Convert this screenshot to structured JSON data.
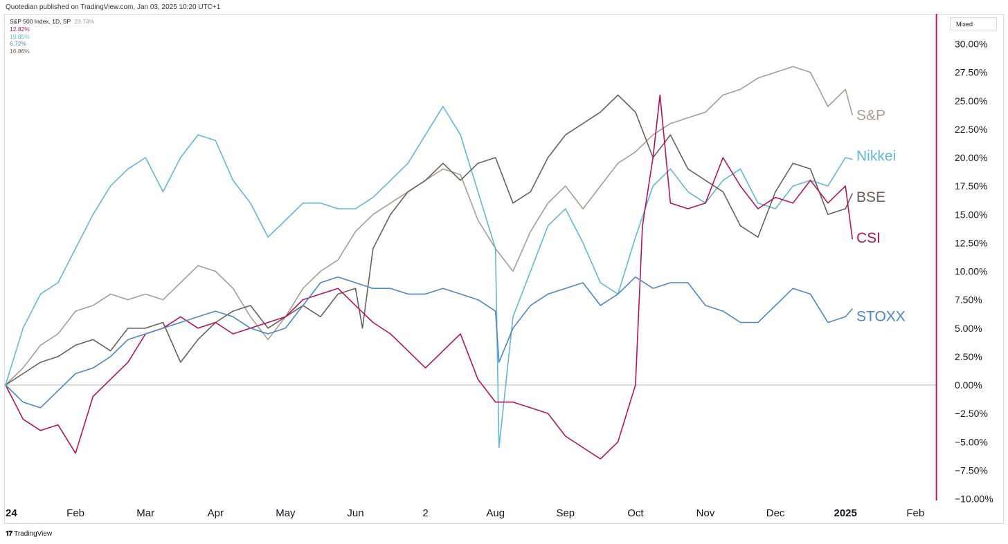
{
  "header": {
    "publisher": "Quotedian published on TradingView.com, Jan 03, 2025 10:20 UTC+1"
  },
  "legend": {
    "symbol": "S&P 500 Index, 1D, SP",
    "symbol_value": "23.74%",
    "values": [
      "12.82%",
      "19.85%",
      "6.72%",
      "16.86%"
    ],
    "value_colors": [
      "#b5125a",
      "#62b6d9",
      "#4a86c5",
      "#6b5e55"
    ]
  },
  "price_scale_mode": "Mixed",
  "watermark": "TradingView",
  "chart_data": {
    "type": "line",
    "title": "",
    "xlabel": "",
    "ylabel": "",
    "ylim": [
      -10,
      31
    ],
    "y_ticks": [
      30,
      27.5,
      25,
      22.5,
      20,
      17.5,
      15,
      12.5,
      10,
      7.5,
      5,
      2.5,
      0,
      -2.5,
      -5,
      -7.5,
      -10
    ],
    "y_tick_labels": [
      "30.00%",
      "27.50%",
      "25.00%",
      "22.50%",
      "20.00%",
      "17.50%",
      "15.00%",
      "12.50%",
      "10.00%",
      "7.50%",
      "5.00%",
      "2.50%",
      "0.00%",
      "−2.50%",
      "−5.00%",
      "−7.50%",
      "−10.00%"
    ],
    "zero_line": 0,
    "x_range": [
      0,
      13.3
    ],
    "x_ticks": [
      {
        "x": 0,
        "label": "24"
      },
      {
        "x": 1,
        "label": "Feb"
      },
      {
        "x": 2,
        "label": "Mar"
      },
      {
        "x": 3,
        "label": "Apr"
      },
      {
        "x": 4,
        "label": "May"
      },
      {
        "x": 5,
        "label": "Jun"
      },
      {
        "x": 6,
        "label": "2"
      },
      {
        "x": 7,
        "label": "Aug"
      },
      {
        "x": 8,
        "label": "Sep"
      },
      {
        "x": 9,
        "label": "Oct"
      },
      {
        "x": 10,
        "label": "Nov"
      },
      {
        "x": 11,
        "label": "Dec"
      },
      {
        "x": 12,
        "label": "2025"
      },
      {
        "x": 13,
        "label": "Feb"
      }
    ],
    "x_unit": "months since start of 2024",
    "marker_x": 13.3,
    "marker_color": "#c2185b",
    "grid": false,
    "series": [
      {
        "name": "S&P",
        "color": "#a89c8f",
        "last_value": 23.74,
        "points": [
          [
            0,
            0
          ],
          [
            0.25,
            1.5
          ],
          [
            0.5,
            3.5
          ],
          [
            0.75,
            4.5
          ],
          [
            1,
            6.5
          ],
          [
            1.25,
            7
          ],
          [
            1.5,
            8
          ],
          [
            1.75,
            7.5
          ],
          [
            2,
            8
          ],
          [
            2.25,
            7.5
          ],
          [
            2.5,
            9
          ],
          [
            2.75,
            10.5
          ],
          [
            3,
            10
          ],
          [
            3.25,
            8.5
          ],
          [
            3.5,
            6
          ],
          [
            3.75,
            4
          ],
          [
            4,
            6
          ],
          [
            4.25,
            8.5
          ],
          [
            4.5,
            10
          ],
          [
            4.75,
            11
          ],
          [
            5,
            13.5
          ],
          [
            5.25,
            15
          ],
          [
            5.5,
            16
          ],
          [
            5.75,
            17
          ],
          [
            6,
            18
          ],
          [
            6.25,
            19
          ],
          [
            6.5,
            18.5
          ],
          [
            6.75,
            14.5
          ],
          [
            7,
            12
          ],
          [
            7.25,
            10
          ],
          [
            7.5,
            13.5
          ],
          [
            7.75,
            16
          ],
          [
            8,
            17.5
          ],
          [
            8.25,
            15.5
          ],
          [
            8.5,
            17.5
          ],
          [
            8.75,
            19.5
          ],
          [
            9,
            20.5
          ],
          [
            9.25,
            22
          ],
          [
            9.5,
            23
          ],
          [
            9.75,
            23.5
          ],
          [
            10,
            24
          ],
          [
            10.25,
            25.5
          ],
          [
            10.5,
            26
          ],
          [
            10.75,
            27
          ],
          [
            11,
            27.5
          ],
          [
            11.25,
            28
          ],
          [
            11.5,
            27.5
          ],
          [
            11.75,
            24.5
          ],
          [
            12,
            26
          ],
          [
            12.1,
            23.74
          ]
        ]
      },
      {
        "name": "Nikkei",
        "color": "#62b6d9",
        "last_value": 19.85,
        "points": [
          [
            0,
            0
          ],
          [
            0.25,
            5
          ],
          [
            0.5,
            8
          ],
          [
            0.75,
            9
          ],
          [
            1,
            12
          ],
          [
            1.25,
            15
          ],
          [
            1.5,
            17.5
          ],
          [
            1.75,
            19
          ],
          [
            2,
            20
          ],
          [
            2.25,
            17
          ],
          [
            2.5,
            20
          ],
          [
            2.75,
            22
          ],
          [
            3,
            21.5
          ],
          [
            3.25,
            18
          ],
          [
            3.5,
            16
          ],
          [
            3.75,
            13
          ],
          [
            4,
            14.5
          ],
          [
            4.25,
            16
          ],
          [
            4.5,
            16
          ],
          [
            4.75,
            15.5
          ],
          [
            5,
            15.5
          ],
          [
            5.25,
            16.5
          ],
          [
            5.5,
            18
          ],
          [
            5.75,
            19.5
          ],
          [
            6,
            22
          ],
          [
            6.25,
            24.5
          ],
          [
            6.5,
            22
          ],
          [
            6.75,
            17
          ],
          [
            7,
            12
          ],
          [
            7.05,
            -5.5
          ],
          [
            7.25,
            6
          ],
          [
            7.5,
            10
          ],
          [
            7.75,
            14
          ],
          [
            8,
            15.5
          ],
          [
            8.25,
            12.5
          ],
          [
            8.5,
            9
          ],
          [
            8.75,
            8
          ],
          [
            9,
            13
          ],
          [
            9.25,
            17.5
          ],
          [
            9.5,
            19
          ],
          [
            9.75,
            17
          ],
          [
            10,
            16
          ],
          [
            10.25,
            18
          ],
          [
            10.5,
            19
          ],
          [
            10.75,
            16
          ],
          [
            11,
            15.5
          ],
          [
            11.25,
            17.5
          ],
          [
            11.5,
            18
          ],
          [
            11.75,
            17.5
          ],
          [
            12,
            20
          ],
          [
            12.1,
            19.85
          ]
        ]
      },
      {
        "name": "BSE",
        "color": "#6b5e55",
        "last_value": 16.86,
        "points": [
          [
            0,
            0
          ],
          [
            0.25,
            1
          ],
          [
            0.5,
            2
          ],
          [
            0.75,
            2.5
          ],
          [
            1,
            3.5
          ],
          [
            1.25,
            4
          ],
          [
            1.5,
            3
          ],
          [
            1.75,
            5
          ],
          [
            2,
            5
          ],
          [
            2.25,
            5.5
          ],
          [
            2.5,
            2
          ],
          [
            2.75,
            4
          ],
          [
            3,
            5.5
          ],
          [
            3.25,
            6.5
          ],
          [
            3.5,
            7
          ],
          [
            3.75,
            5
          ],
          [
            4,
            6
          ],
          [
            4.25,
            7
          ],
          [
            4.5,
            6
          ],
          [
            4.75,
            8
          ],
          [
            5,
            8.5
          ],
          [
            5.1,
            5
          ],
          [
            5.25,
            12
          ],
          [
            5.5,
            15
          ],
          [
            5.75,
            17
          ],
          [
            6,
            18
          ],
          [
            6.25,
            19.5
          ],
          [
            6.5,
            18
          ],
          [
            6.75,
            19.5
          ],
          [
            7,
            20
          ],
          [
            7.25,
            16
          ],
          [
            7.5,
            17
          ],
          [
            7.75,
            20
          ],
          [
            8,
            22
          ],
          [
            8.25,
            23
          ],
          [
            8.5,
            24
          ],
          [
            8.75,
            25.5
          ],
          [
            9,
            24
          ],
          [
            9.25,
            20
          ],
          [
            9.5,
            22
          ],
          [
            9.75,
            19
          ],
          [
            10,
            18
          ],
          [
            10.25,
            17
          ],
          [
            10.5,
            14
          ],
          [
            10.75,
            13
          ],
          [
            11,
            17
          ],
          [
            11.25,
            19.5
          ],
          [
            11.5,
            19
          ],
          [
            11.75,
            15
          ],
          [
            12,
            15.5
          ],
          [
            12.1,
            16.86
          ]
        ]
      },
      {
        "name": "CSI",
        "color": "#b5125a",
        "last_value": 12.82,
        "points": [
          [
            0,
            0
          ],
          [
            0.25,
            -3
          ],
          [
            0.5,
            -4
          ],
          [
            0.75,
            -3.5
          ],
          [
            1,
            -6
          ],
          [
            1.25,
            -1
          ],
          [
            1.5,
            0.5
          ],
          [
            1.75,
            2
          ],
          [
            2,
            4.5
          ],
          [
            2.25,
            5
          ],
          [
            2.5,
            6
          ],
          [
            2.75,
            5
          ],
          [
            3,
            5.5
          ],
          [
            3.25,
            4.5
          ],
          [
            3.5,
            5
          ],
          [
            3.75,
            5.5
          ],
          [
            4,
            6
          ],
          [
            4.25,
            7.5
          ],
          [
            4.5,
            8
          ],
          [
            4.75,
            8.5
          ],
          [
            5,
            7
          ],
          [
            5.25,
            5.5
          ],
          [
            5.5,
            4.5
          ],
          [
            5.75,
            3
          ],
          [
            6,
            1.5
          ],
          [
            6.25,
            3
          ],
          [
            6.5,
            4.5
          ],
          [
            6.75,
            0.5
          ],
          [
            7,
            -1.5
          ],
          [
            7.25,
            -1.5
          ],
          [
            7.5,
            -2
          ],
          [
            7.75,
            -2.5
          ],
          [
            8,
            -4.5
          ],
          [
            8.25,
            -5.5
          ],
          [
            8.5,
            -6.5
          ],
          [
            8.75,
            -5
          ],
          [
            9,
            0
          ],
          [
            9.1,
            14
          ],
          [
            9.25,
            20
          ],
          [
            9.35,
            25.5
          ],
          [
            9.5,
            16
          ],
          [
            9.75,
            15.5
          ],
          [
            10,
            16
          ],
          [
            10.25,
            20
          ],
          [
            10.5,
            17.5
          ],
          [
            10.75,
            15.5
          ],
          [
            11,
            16.5
          ],
          [
            11.25,
            16
          ],
          [
            11.5,
            18
          ],
          [
            11.75,
            16
          ],
          [
            12,
            17.5
          ],
          [
            12.1,
            12.82
          ]
        ]
      },
      {
        "name": "STOXX",
        "color": "#4a86c5",
        "last_value": 6.72,
        "points": [
          [
            0,
            0
          ],
          [
            0.25,
            -1.5
          ],
          [
            0.5,
            -2
          ],
          [
            0.75,
            -0.5
          ],
          [
            1,
            1
          ],
          [
            1.25,
            1.5
          ],
          [
            1.5,
            2.5
          ],
          [
            1.75,
            4
          ],
          [
            2,
            4.5
          ],
          [
            2.25,
            5
          ],
          [
            2.5,
            5.5
          ],
          [
            2.75,
            6
          ],
          [
            3,
            6.5
          ],
          [
            3.25,
            6
          ],
          [
            3.5,
            5
          ],
          [
            3.75,
            4.5
          ],
          [
            4,
            5
          ],
          [
            4.25,
            7
          ],
          [
            4.5,
            9
          ],
          [
            4.75,
            9.5
          ],
          [
            5,
            9
          ],
          [
            5.25,
            8.5
          ],
          [
            5.5,
            8.5
          ],
          [
            5.75,
            8
          ],
          [
            6,
            8
          ],
          [
            6.25,
            8.5
          ],
          [
            6.5,
            8
          ],
          [
            6.75,
            7.5
          ],
          [
            7,
            6.5
          ],
          [
            7.05,
            2
          ],
          [
            7.25,
            5
          ],
          [
            7.5,
            7
          ],
          [
            7.75,
            8
          ],
          [
            8,
            8.5
          ],
          [
            8.25,
            9
          ],
          [
            8.5,
            7
          ],
          [
            8.75,
            8
          ],
          [
            9,
            9.5
          ],
          [
            9.25,
            8.5
          ],
          [
            9.5,
            9
          ],
          [
            9.75,
            9
          ],
          [
            10,
            7
          ],
          [
            10.25,
            6.5
          ],
          [
            10.5,
            5.5
          ],
          [
            10.75,
            5.5
          ],
          [
            11,
            7
          ],
          [
            11.25,
            8.5
          ],
          [
            11.5,
            8
          ],
          [
            11.75,
            5.5
          ],
          [
            12,
            6
          ],
          [
            12.1,
            6.72
          ]
        ]
      }
    ]
  }
}
